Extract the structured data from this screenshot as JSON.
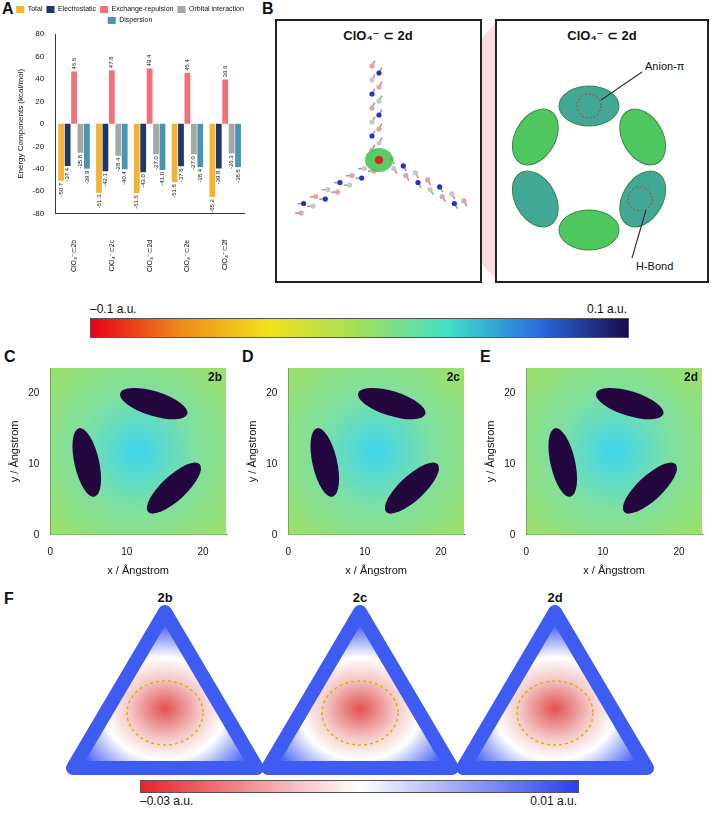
{
  "panel_letters": [
    "A",
    "B",
    "C",
    "D",
    "E",
    "F"
  ],
  "chart_data": [
    {
      "type": "bar",
      "y_label": "Energy Components (kcal/mol)",
      "categories": [
        "ClO₄⁻⊂2b",
        "ClO₄⁻⊂2c",
        "ClO₄⁻⊂2d",
        "ClO₄⁻⊂2e",
        "ClO₄⁻⊂2f"
      ],
      "series": [
        {
          "name": "Total",
          "color": "#f5b335",
          "values": [
            -50.7,
            -61.3,
            -61.6,
            -51.8,
            -65.2
          ],
          "value_labels": [
            "-50.7",
            "-61.3",
            "-61.6",
            "-51.8",
            "-65.2"
          ]
        },
        {
          "name": "Electrostatic",
          "color": "#1d3768",
          "values": [
            -37.4,
            -42.1,
            -43.0,
            -37.8,
            -39.8
          ],
          "value_labels": [
            "-37.4",
            "-42.1",
            "-43.0",
            "-37.8",
            "-39.8"
          ]
        },
        {
          "name": "Exchange-repulsion",
          "color": "#f2707a",
          "values": [
            46.6,
            47.8,
            49.4,
            45.4,
            39.6
          ],
          "value_labels": [
            "46.6",
            "47.8",
            "49.4",
            "45.4",
            "39.6"
          ]
        },
        {
          "name": "Orbital interaction",
          "color": "#a6a6a6",
          "values": [
            -25.8,
            -28.4,
            -27.0,
            -27.0,
            -26.3
          ],
          "value_labels": [
            "-25.8",
            "-28.4",
            "-27.0",
            "-27.0",
            "-26.3"
          ]
        },
        {
          "name": "Dispersion",
          "color": "#4896b3",
          "values": [
            -39.9,
            -40.4,
            -41.0,
            -38.4,
            -38.5
          ],
          "value_labels": [
            "-39.9",
            "-40.4",
            "-41.0",
            "-38.4",
            "-38.5"
          ]
        }
      ],
      "ylim": [
        -80,
        80
      ],
      "yticks": [
        -80,
        -60,
        -40,
        -20,
        0,
        20,
        40,
        60,
        80
      ],
      "data_labels": true,
      "legend": "top",
      "grid": false
    },
    {
      "type": "heatmap",
      "title": "2b",
      "x_label": "x / Ångstrom",
      "y_label": "y / Ångstrom",
      "xlim": [
        0,
        23
      ],
      "ylim": [
        0,
        23.5
      ],
      "xticks": [
        0,
        10,
        20
      ],
      "yticks": [
        0,
        10,
        20
      ]
    },
    {
      "type": "heatmap",
      "title": "2c",
      "x_label": "x / Ångstrom",
      "y_label": "y / Ångstrom",
      "xlim": [
        0,
        23
      ],
      "ylim": [
        0,
        23.5
      ],
      "xticks": [
        0,
        10,
        20
      ],
      "yticks": [
        0,
        10,
        20
      ]
    },
    {
      "type": "heatmap",
      "title": "2d",
      "x_label": "x / Ångstrom",
      "y_label": "y / Ångstrom",
      "xlim": [
        0,
        23
      ],
      "ylim": [
        0,
        23.5
      ],
      "xticks": [
        0,
        10,
        20
      ],
      "yticks": [
        0,
        10,
        20
      ]
    }
  ],
  "color_scale": {
    "range": [
      -0.1,
      0.1
    ],
    "ticks": [
      {
        "value": -0.1,
        "label": "–0.1 a.u."
      },
      {
        "value": 0.1,
        "label": "0.1 a.u."
      }
    ]
  },
  "panel_B": {
    "titles": [
      "ClO₄⁻ ⊂ 2d",
      "ClO₄⁻ ⊂ 2d"
    ],
    "annotations": [
      "Anion-π",
      "H-Bond"
    ]
  },
  "panel_F": {
    "labels": [
      "2b",
      "2c",
      "2d"
    ],
    "color_scale": {
      "range": [
        -0.03,
        0.01
      ],
      "ticks": [
        {
          "value": -0.03,
          "label": "–0.03 a.u."
        },
        {
          "value": 0.01,
          "label": "0.01 a.u."
        }
      ]
    }
  }
}
